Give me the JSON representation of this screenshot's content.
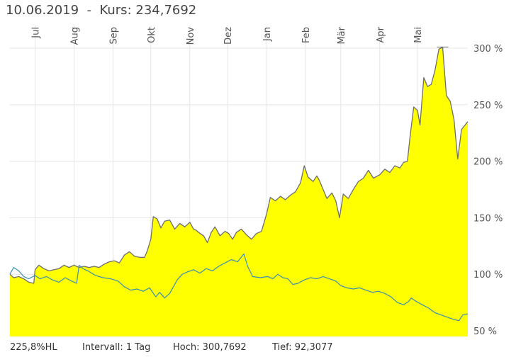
{
  "header": {
    "date": "10.06.2019",
    "separator": "-",
    "price_label": "Kurs:",
    "price_value": "234,7692"
  },
  "footer": {
    "performance": "225,8%HL",
    "interval": "Intervall: 1 Tag",
    "high": "Hoch: 300,7692",
    "low": "Tief: 92,3077"
  },
  "colors": {
    "area_fill": "#ffff00",
    "main_line": "#6e6e6e",
    "benchmark_line": "#3c8fb0",
    "benchmark_early": "#4f8fe6",
    "grid": "#e6e6e6"
  },
  "chart_data": {
    "type": "area",
    "ylim": [
      45,
      310
    ],
    "y_ticks": [
      {
        "value": 50,
        "label": "50 %"
      },
      {
        "value": 100,
        "label": "100 %"
      },
      {
        "value": 150,
        "label": "150 %"
      },
      {
        "value": 200,
        "label": "200 %"
      },
      {
        "value": 250,
        "label": "250 %"
      },
      {
        "value": 300,
        "label": "300 %"
      }
    ],
    "x_range": [
      "2018-06-11",
      "2019-06-10"
    ],
    "x_ticks": [
      {
        "date": "2018-07-01",
        "label": "Jul"
      },
      {
        "date": "2018-08-01",
        "label": "Aug"
      },
      {
        "date": "2018-09-01",
        "label": "Sep"
      },
      {
        "date": "2018-10-01",
        "label": "Okt"
      },
      {
        "date": "2018-11-01",
        "label": "Nov"
      },
      {
        "date": "2018-12-01",
        "label": "Dez"
      },
      {
        "date": "2019-01-01",
        "label": "Jan"
      },
      {
        "date": "2019-02-01",
        "label": "Feb"
      },
      {
        "date": "2019-03-01",
        "label": "Mär"
      },
      {
        "date": "2019-04-01",
        "label": "Apr"
      },
      {
        "date": "2019-05-01",
        "label": "Mai"
      }
    ],
    "series": [
      {
        "points": [
          [
            "2018-06-11",
            100
          ],
          [
            "2018-06-14",
            97
          ],
          [
            "2018-06-18",
            98
          ],
          [
            "2018-06-22",
            96
          ],
          [
            "2018-06-26",
            93
          ],
          [
            "2018-06-30",
            92
          ],
          [
            "2018-07-01",
            104
          ],
          [
            "2018-07-04",
            108
          ],
          [
            "2018-07-08",
            105
          ],
          [
            "2018-07-12",
            103
          ],
          [
            "2018-07-16",
            104
          ],
          [
            "2018-07-20",
            105
          ],
          [
            "2018-07-24",
            108
          ],
          [
            "2018-07-28",
            106
          ],
          [
            "2018-08-01",
            108
          ],
          [
            "2018-08-05",
            106
          ],
          [
            "2018-08-09",
            107
          ],
          [
            "2018-08-13",
            106
          ],
          [
            "2018-08-17",
            107
          ],
          [
            "2018-08-21",
            106
          ],
          [
            "2018-08-25",
            109
          ],
          [
            "2018-08-29",
            111
          ],
          [
            "2018-09-02",
            112
          ],
          [
            "2018-09-06",
            110
          ],
          [
            "2018-09-10",
            117
          ],
          [
            "2018-09-14",
            120
          ],
          [
            "2018-09-18",
            116
          ],
          [
            "2018-09-22",
            115
          ],
          [
            "2018-09-26",
            115
          ],
          [
            "2018-09-28",
            120
          ],
          [
            "2018-10-01",
            131
          ],
          [
            "2018-10-03",
            151
          ],
          [
            "2018-10-06",
            149
          ],
          [
            "2018-10-09",
            141
          ],
          [
            "2018-10-12",
            147
          ],
          [
            "2018-10-16",
            148
          ],
          [
            "2018-10-20",
            140
          ],
          [
            "2018-10-24",
            145
          ],
          [
            "2018-10-28",
            142
          ],
          [
            "2018-11-01",
            146
          ],
          [
            "2018-11-04",
            140
          ],
          [
            "2018-11-06",
            139
          ],
          [
            "2018-11-08",
            137
          ],
          [
            "2018-11-12",
            134
          ],
          [
            "2018-11-15",
            128
          ],
          [
            "2018-11-18",
            137
          ],
          [
            "2018-11-21",
            142
          ],
          [
            "2018-11-25",
            134
          ],
          [
            "2018-11-29",
            138
          ],
          [
            "2018-12-02",
            136
          ],
          [
            "2018-12-05",
            131
          ],
          [
            "2018-12-08",
            137
          ],
          [
            "2018-12-12",
            140
          ],
          [
            "2018-12-16",
            135
          ],
          [
            "2018-12-20",
            131
          ],
          [
            "2018-12-24",
            136
          ],
          [
            "2018-12-28",
            138
          ],
          [
            "2019-01-01",
            153
          ],
          [
            "2019-01-04",
            168
          ],
          [
            "2019-01-08",
            165
          ],
          [
            "2019-01-12",
            169
          ],
          [
            "2019-01-16",
            166
          ],
          [
            "2019-01-20",
            170
          ],
          [
            "2019-01-24",
            173
          ],
          [
            "2019-01-28",
            181
          ],
          [
            "2019-01-31",
            196
          ],
          [
            "2019-02-03",
            186
          ],
          [
            "2019-02-07",
            182
          ],
          [
            "2019-02-10",
            187
          ],
          [
            "2019-02-12",
            183
          ],
          [
            "2019-02-15",
            175
          ],
          [
            "2019-02-18",
            167
          ],
          [
            "2019-02-22",
            172
          ],
          [
            "2019-02-25",
            165
          ],
          [
            "2019-02-28",
            150
          ],
          [
            "2019-03-03",
            171
          ],
          [
            "2019-03-07",
            167
          ],
          [
            "2019-03-11",
            175
          ],
          [
            "2019-03-15",
            182
          ],
          [
            "2019-03-19",
            185
          ],
          [
            "2019-03-23",
            192
          ],
          [
            "2019-03-27",
            185
          ],
          [
            "2019-04-01",
            188
          ],
          [
            "2019-04-05",
            193
          ],
          [
            "2019-04-09",
            190
          ],
          [
            "2019-04-13",
            196
          ],
          [
            "2019-04-17",
            194
          ],
          [
            "2019-04-20",
            199
          ],
          [
            "2019-04-23",
            200
          ],
          [
            "2019-04-25",
            221
          ],
          [
            "2019-04-28",
            248
          ],
          [
            "2019-05-01",
            245
          ],
          [
            "2019-05-03",
            232
          ],
          [
            "2019-05-06",
            274
          ],
          [
            "2019-05-09",
            266
          ],
          [
            "2019-05-12",
            268
          ],
          [
            "2019-05-15",
            281
          ],
          [
            "2019-05-18",
            299
          ],
          [
            "2019-05-21",
            301
          ],
          [
            "2019-05-24",
            258
          ],
          [
            "2019-05-27",
            253
          ],
          [
            "2019-05-30",
            237
          ],
          [
            "2019-06-02",
            202
          ],
          [
            "2019-06-05",
            228
          ],
          [
            "2019-06-10",
            235
          ]
        ]
      },
      {
        "points": [
          [
            "2018-06-11",
            100
          ],
          [
            "2018-06-14",
            106
          ],
          [
            "2018-06-18",
            103
          ],
          [
            "2018-06-22",
            98
          ],
          [
            "2018-06-26",
            96
          ],
          [
            "2018-07-01",
            99
          ],
          [
            "2018-07-05",
            96
          ],
          [
            "2018-07-10",
            98
          ],
          [
            "2018-07-15",
            95
          ],
          [
            "2018-07-20",
            93
          ],
          [
            "2018-07-25",
            97
          ],
          [
            "2018-07-30",
            94
          ],
          [
            "2018-08-03",
            92
          ],
          [
            "2018-08-05",
            108
          ],
          [
            "2018-08-08",
            105
          ],
          [
            "2018-08-12",
            103
          ],
          [
            "2018-08-18",
            99
          ],
          [
            "2018-08-24",
            97
          ],
          [
            "2018-08-30",
            96
          ],
          [
            "2018-09-05",
            94
          ],
          [
            "2018-09-10",
            89
          ],
          [
            "2018-09-15",
            86
          ],
          [
            "2018-09-20",
            87
          ],
          [
            "2018-09-25",
            85
          ],
          [
            "2018-09-30",
            88
          ],
          [
            "2018-10-05",
            80
          ],
          [
            "2018-10-08",
            84
          ],
          [
            "2018-10-12",
            79
          ],
          [
            "2018-10-16",
            83
          ],
          [
            "2018-10-19",
            89
          ],
          [
            "2018-10-22",
            95
          ],
          [
            "2018-10-26",
            100
          ],
          [
            "2018-10-30",
            102
          ],
          [
            "2018-11-04",
            104
          ],
          [
            "2018-11-09",
            101
          ],
          [
            "2018-11-14",
            105
          ],
          [
            "2018-11-19",
            103
          ],
          [
            "2018-11-24",
            107
          ],
          [
            "2018-11-29",
            110
          ],
          [
            "2018-12-04",
            113
          ],
          [
            "2018-12-09",
            111
          ],
          [
            "2018-12-14",
            118
          ],
          [
            "2018-12-17",
            107
          ],
          [
            "2018-12-21",
            98
          ],
          [
            "2018-12-27",
            97
          ],
          [
            "2019-01-02",
            98
          ],
          [
            "2019-01-06",
            96
          ],
          [
            "2019-01-10",
            100
          ],
          [
            "2019-01-14",
            97
          ],
          [
            "2019-01-18",
            96
          ],
          [
            "2019-01-22",
            91
          ],
          [
            "2019-01-26",
            92
          ],
          [
            "2019-01-31",
            95
          ],
          [
            "2019-02-05",
            97
          ],
          [
            "2019-02-10",
            96
          ],
          [
            "2019-02-15",
            98
          ],
          [
            "2019-02-20",
            96
          ],
          [
            "2019-02-25",
            94
          ],
          [
            "2019-03-01",
            90
          ],
          [
            "2019-03-06",
            88
          ],
          [
            "2019-03-11",
            87
          ],
          [
            "2019-03-16",
            88
          ],
          [
            "2019-03-21",
            86
          ],
          [
            "2019-03-26",
            84
          ],
          [
            "2019-03-31",
            85
          ],
          [
            "2019-04-05",
            83
          ],
          [
            "2019-04-10",
            80
          ],
          [
            "2019-04-15",
            75
          ],
          [
            "2019-04-20",
            73
          ],
          [
            "2019-04-24",
            76
          ],
          [
            "2019-04-26",
            79
          ],
          [
            "2019-04-30",
            76
          ],
          [
            "2019-05-05",
            73
          ],
          [
            "2019-05-10",
            70
          ],
          [
            "2019-05-15",
            66
          ],
          [
            "2019-05-20",
            64
          ],
          [
            "2019-05-25",
            62
          ],
          [
            "2019-05-30",
            60
          ],
          [
            "2019-06-03",
            59
          ],
          [
            "2019-06-06",
            64
          ],
          [
            "2019-06-10",
            65
          ]
        ]
      }
    ]
  }
}
